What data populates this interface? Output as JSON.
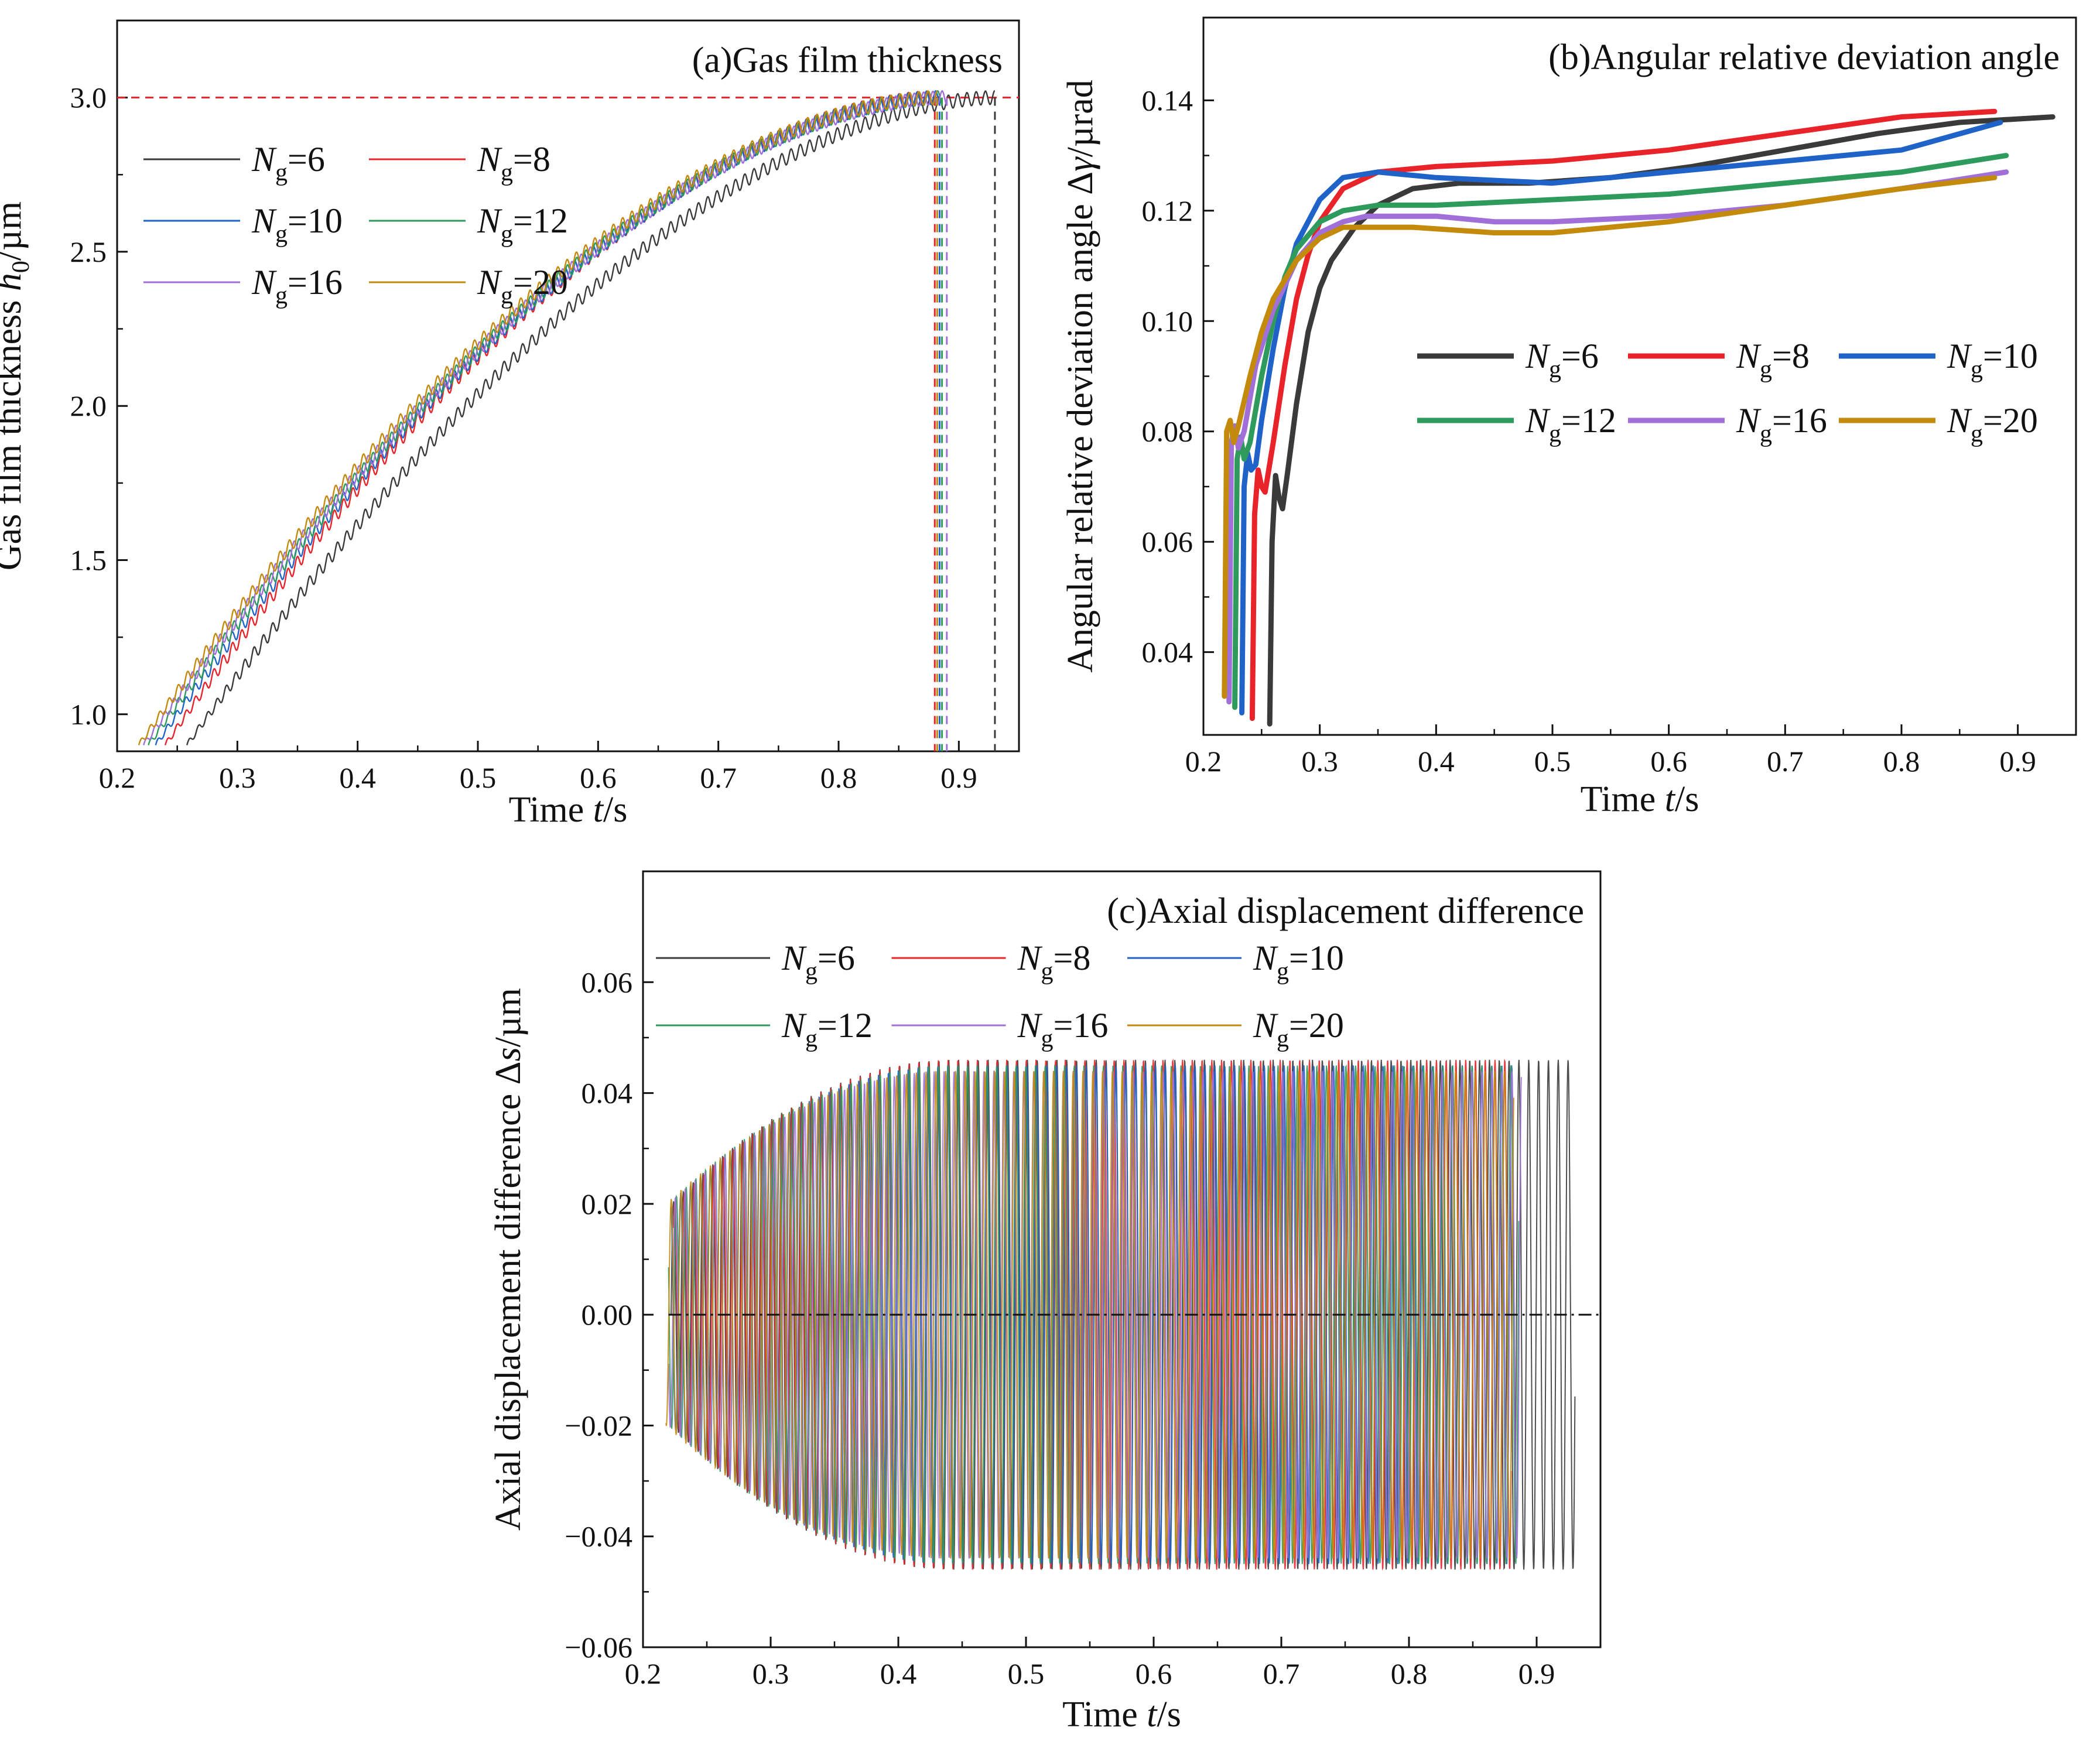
{
  "chart_data": [
    {
      "id": "a",
      "type": "line",
      "title": "(a)Gas film thickness",
      "xlabel": "Time t/s",
      "xlabel_parts": [
        "Time ",
        "t",
        "/s"
      ],
      "ylabel": "Gas film thickness h0/µm",
      "ylabel_parts": [
        "Gas film thickness ",
        "h",
        "0",
        "/µm"
      ],
      "xlim": [
        0.2,
        0.95
      ],
      "ylim": [
        0.88,
        3.25
      ],
      "xticks": [
        0.2,
        0.3,
        0.4,
        0.5,
        0.6,
        0.7,
        0.8,
        0.9
      ],
      "xtick_labels": [
        "0.2",
        "0.3",
        "0.4",
        "0.5",
        "0.6",
        "0.7",
        "0.8",
        "0.9"
      ],
      "yticks": [
        1.0,
        1.5,
        2.0,
        2.5,
        3.0
      ],
      "ytick_labels": [
        "1.0",
        "1.5",
        "2.0",
        "2.5",
        "3.0"
      ],
      "legend_position": "upper-left",
      "reference_line": {
        "y": 3.0,
        "style": "dashed",
        "color": "#e8242a"
      },
      "series": [
        {
          "name": "Ng=6",
          "symbol": "N",
          "sub": "g",
          "value": "=6",
          "color": "#3a3a3a",
          "t_start": 0.258,
          "t_end": 0.93,
          "h_start": 0.9,
          "h_end": 3.0
        },
        {
          "name": "Ng=8",
          "symbol": "N",
          "sub": "g",
          "value": "=8",
          "color": "#e8242a",
          "t_start": 0.24,
          "t_end": 0.88,
          "h_start": 0.9,
          "h_end": 3.0
        },
        {
          "name": "Ng=10",
          "symbol": "N",
          "sub": "g",
          "value": "=10",
          "color": "#1f63c9",
          "t_start": 0.232,
          "t_end": 0.884,
          "h_start": 0.9,
          "h_end": 3.0
        },
        {
          "name": "Ng=12",
          "symbol": "N",
          "sub": "g",
          "value": "=12",
          "color": "#2e9a5c",
          "t_start": 0.226,
          "t_end": 0.886,
          "h_start": 0.9,
          "h_end": 3.0
        },
        {
          "name": "Ng=16",
          "symbol": "N",
          "sub": "g",
          "value": "=16",
          "color": "#a070d8",
          "t_start": 0.222,
          "t_end": 0.89,
          "h_start": 0.9,
          "h_end": 3.0
        },
        {
          "name": "Ng=20",
          "symbol": "N",
          "sub": "g",
          "value": "=20",
          "color": "#c48a0c",
          "t_start": 0.218,
          "t_end": 0.882,
          "h_start": 0.9,
          "h_end": 3.0
        }
      ]
    },
    {
      "id": "b",
      "type": "line",
      "title": "(b)Angular relative deviation angle",
      "xlabel": "Time t/s",
      "xlabel_parts": [
        "Time ",
        "t",
        "/s"
      ],
      "ylabel": "Angular relative deviation angle Δγ/µrad",
      "ylabel_parts": [
        "Angular relative deviation angle Δ",
        "γ",
        "/µrad"
      ],
      "xlim": [
        0.2,
        0.95
      ],
      "ylim": [
        0.025,
        0.155
      ],
      "xticks": [
        0.2,
        0.3,
        0.4,
        0.5,
        0.6,
        0.7,
        0.8,
        0.9
      ],
      "xtick_labels": [
        "0.2",
        "0.3",
        "0.4",
        "0.5",
        "0.6",
        "0.7",
        "0.8",
        "0.9"
      ],
      "yticks": [
        0.04,
        0.06,
        0.08,
        0.1,
        0.12,
        0.14
      ],
      "ytick_labels": [
        "0.04",
        "0.06",
        "0.08",
        "0.10",
        "0.12",
        "0.14"
      ],
      "legend_position": "center-right",
      "series": [
        {
          "name": "Ng=6",
          "symbol": "N",
          "sub": "g",
          "value": "=6",
          "color": "#3a3a3a",
          "x": [
            0.257,
            0.259,
            0.262,
            0.265,
            0.268,
            0.272,
            0.28,
            0.29,
            0.3,
            0.31,
            0.33,
            0.35,
            0.38,
            0.42,
            0.48,
            0.55,
            0.62,
            0.7,
            0.78,
            0.85,
            0.93
          ],
          "y": [
            0.027,
            0.06,
            0.072,
            0.068,
            0.066,
            0.072,
            0.085,
            0.098,
            0.106,
            0.111,
            0.117,
            0.121,
            0.124,
            0.125,
            0.125,
            0.126,
            0.128,
            0.131,
            0.134,
            0.136,
            0.137
          ]
        },
        {
          "name": "Ng=8",
          "symbol": "N",
          "sub": "g",
          "value": "=8",
          "color": "#e8242a",
          "x": [
            0.242,
            0.244,
            0.247,
            0.25,
            0.253,
            0.26,
            0.27,
            0.28,
            0.29,
            0.3,
            0.32,
            0.35,
            0.4,
            0.5,
            0.6,
            0.7,
            0.8,
            0.88
          ],
          "y": [
            0.028,
            0.065,
            0.073,
            0.07,
            0.069,
            0.078,
            0.092,
            0.104,
            0.112,
            0.118,
            0.124,
            0.127,
            0.128,
            0.129,
            0.131,
            0.134,
            0.137,
            0.138
          ]
        },
        {
          "name": "Ng=10",
          "symbol": "N",
          "sub": "g",
          "value": "=10",
          "color": "#1f63c9",
          "x": [
            0.233,
            0.235,
            0.238,
            0.241,
            0.245,
            0.25,
            0.26,
            0.27,
            0.28,
            0.3,
            0.32,
            0.35,
            0.4,
            0.5,
            0.6,
            0.7,
            0.8,
            0.885
          ],
          "y": [
            0.029,
            0.07,
            0.076,
            0.073,
            0.074,
            0.082,
            0.095,
            0.106,
            0.114,
            0.122,
            0.126,
            0.127,
            0.126,
            0.125,
            0.127,
            0.129,
            0.131,
            0.136
          ]
        },
        {
          "name": "Ng=12",
          "symbol": "N",
          "sub": "g",
          "value": "=12",
          "color": "#2e9a5c",
          "x": [
            0.227,
            0.229,
            0.232,
            0.235,
            0.24,
            0.25,
            0.26,
            0.27,
            0.28,
            0.3,
            0.32,
            0.35,
            0.4,
            0.5,
            0.6,
            0.7,
            0.8,
            0.89
          ],
          "y": [
            0.03,
            0.075,
            0.079,
            0.075,
            0.078,
            0.09,
            0.1,
            0.108,
            0.113,
            0.118,
            0.12,
            0.121,
            0.121,
            0.122,
            0.123,
            0.125,
            0.127,
            0.13
          ]
        },
        {
          "name": "Ng=16",
          "symbol": "N",
          "sub": "g",
          "value": "=16",
          "color": "#a070d8",
          "x": [
            0.222,
            0.224,
            0.227,
            0.23,
            0.235,
            0.245,
            0.26,
            0.28,
            0.3,
            0.32,
            0.34,
            0.36,
            0.4,
            0.45,
            0.5,
            0.6,
            0.7,
            0.8,
            0.89
          ],
          "y": [
            0.031,
            0.078,
            0.081,
            0.077,
            0.08,
            0.092,
            0.102,
            0.111,
            0.116,
            0.118,
            0.119,
            0.119,
            0.119,
            0.118,
            0.118,
            0.119,
            0.121,
            0.124,
            0.127
          ]
        },
        {
          "name": "Ng=20",
          "symbol": "N",
          "sub": "g",
          "value": "=20",
          "color": "#c48a0c",
          "x": [
            0.218,
            0.22,
            0.223,
            0.226,
            0.23,
            0.24,
            0.25,
            0.26,
            0.28,
            0.3,
            0.32,
            0.34,
            0.38,
            0.45,
            0.5,
            0.6,
            0.7,
            0.8,
            0.88
          ],
          "y": [
            0.032,
            0.08,
            0.082,
            0.078,
            0.081,
            0.09,
            0.098,
            0.104,
            0.111,
            0.115,
            0.117,
            0.117,
            0.117,
            0.116,
            0.116,
            0.118,
            0.121,
            0.124,
            0.126
          ]
        }
      ]
    },
    {
      "id": "c",
      "type": "line",
      "title": "(c)Axial displacement difference",
      "xlabel": "Time t/s",
      "xlabel_parts": [
        "Time ",
        "t",
        "/s"
      ],
      "ylabel": "Axial displacement difference Δs/µm",
      "ylabel_parts": [
        "Axial displacement difference Δ",
        "s",
        "/µm"
      ],
      "xlim": [
        0.2,
        0.95
      ],
      "ylim": [
        -0.06,
        0.08
      ],
      "xticks": [
        0.2,
        0.3,
        0.4,
        0.5,
        0.6,
        0.7,
        0.8,
        0.9
      ],
      "xtick_labels": [
        "0.2",
        "0.3",
        "0.4",
        "0.5",
        "0.6",
        "0.7",
        "0.8",
        "0.9"
      ],
      "yticks": [
        -0.06,
        -0.04,
        -0.02,
        0.0,
        0.02,
        0.04,
        0.06
      ],
      "ytick_labels": [
        "−0.06",
        "−0.04",
        "−0.02",
        "0.00",
        "0.02",
        "0.04",
        "0.06"
      ],
      "legend_position": "top",
      "reference_line": {
        "y": 0.0,
        "style": "dash-dot",
        "color": "#111111"
      },
      "series": [
        {
          "name": "Ng=6",
          "symbol": "N",
          "sub": "g",
          "value": "=6",
          "color": "#3a3a3a",
          "t_start": 0.222,
          "t_end": 0.93,
          "amp_start": 0.02,
          "amp_max": 0.046
        },
        {
          "name": "Ng=8",
          "symbol": "N",
          "sub": "g",
          "value": "=8",
          "color": "#e8242a",
          "t_start": 0.224,
          "t_end": 0.88,
          "amp_start": 0.02,
          "amp_max": 0.046
        },
        {
          "name": "Ng=10",
          "symbol": "N",
          "sub": "g",
          "value": "=10",
          "color": "#1f63c9",
          "t_start": 0.222,
          "t_end": 0.884,
          "amp_start": 0.02,
          "amp_max": 0.045
        },
        {
          "name": "Ng=12",
          "symbol": "N",
          "sub": "g",
          "value": "=12",
          "color": "#2e9a5c",
          "t_start": 0.22,
          "t_end": 0.886,
          "amp_start": 0.02,
          "amp_max": 0.045
        },
        {
          "name": "Ng=16",
          "symbol": "N",
          "sub": "g",
          "value": "=16",
          "color": "#a070d8",
          "t_start": 0.22,
          "t_end": 0.888,
          "amp_start": 0.02,
          "amp_max": 0.044
        },
        {
          "name": "Ng=20",
          "symbol": "N",
          "sub": "g",
          "value": "=20",
          "color": "#c48a0c",
          "t_start": 0.218,
          "t_end": 0.882,
          "amp_start": 0.02,
          "amp_max": 0.044
        }
      ]
    }
  ]
}
